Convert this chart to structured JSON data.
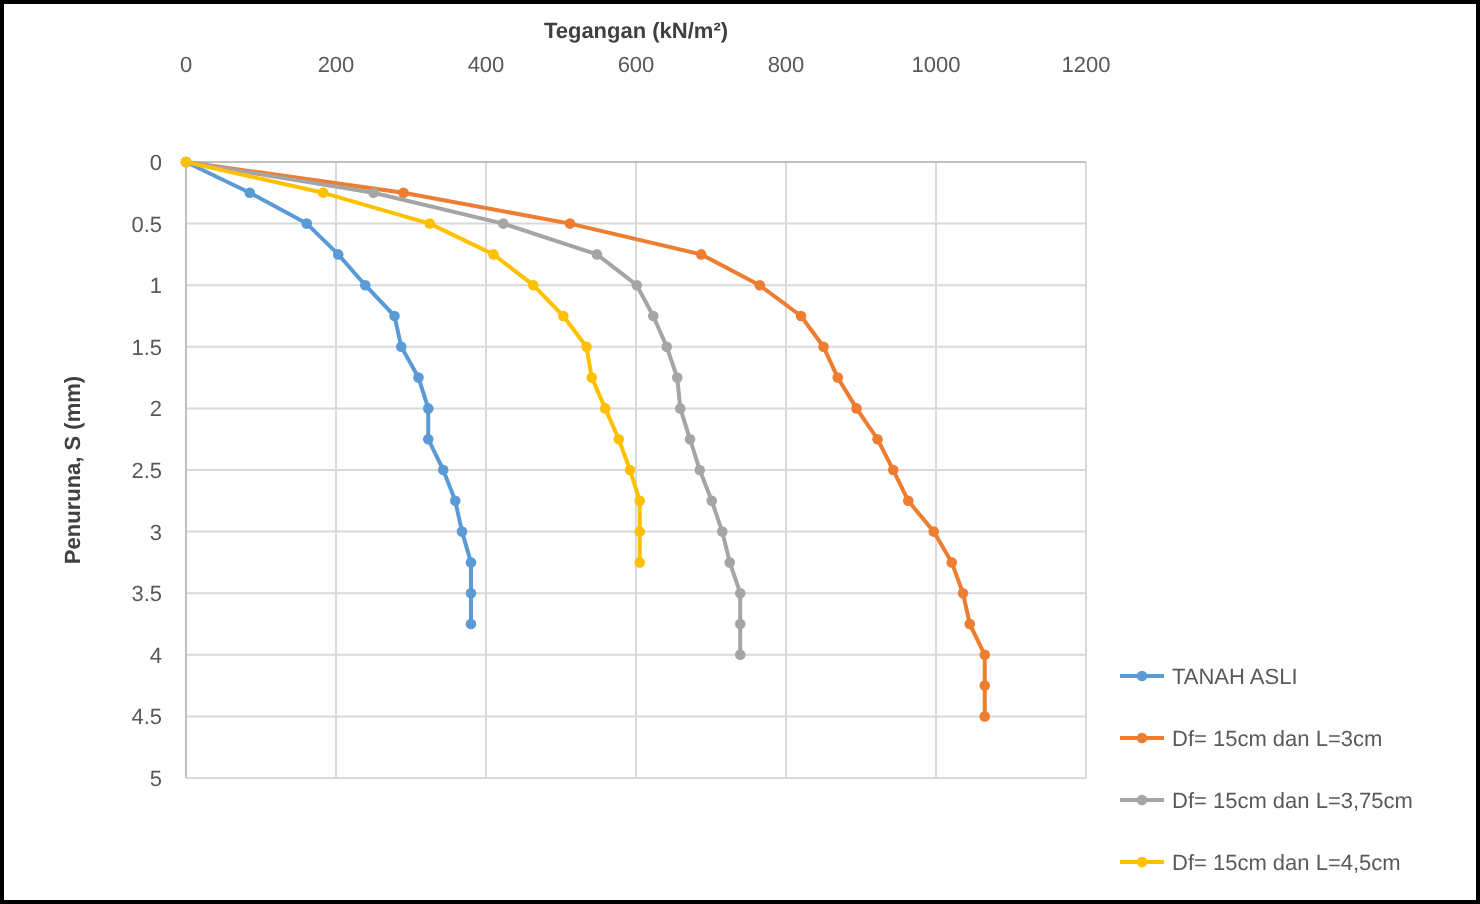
{
  "chart_data": {
    "type": "line",
    "xlabel": "Tegangan (kN/m²)",
    "ylabel": "Penuruna, S (mm)",
    "xlim": [
      0,
      1200
    ],
    "xticks": [
      0,
      200,
      400,
      600,
      800,
      1000,
      1200
    ],
    "ylim": [
      5,
      0
    ],
    "yticks": [
      0,
      0.5,
      1,
      1.5,
      2,
      2.5,
      3,
      3.5,
      4,
      4.5,
      5
    ],
    "grid": true,
    "legend": "bottom right",
    "marker": "circle",
    "line_style": "solid",
    "series": [
      {
        "name": "TANAH ASLI",
        "color": "#5b9bd5",
        "x": [
          0,
          85,
          161,
          203,
          239,
          278,
          287,
          310,
          323,
          323,
          343,
          359,
          368,
          380,
          380,
          380
        ],
        "values": [
          0,
          0.25,
          0.5,
          0.75,
          1,
          1.25,
          1.5,
          1.75,
          2,
          2.25,
          2.5,
          2.75,
          3,
          3.25,
          3.5,
          3.75
        ]
      },
      {
        "name": "Df= 15cm dan L=3cm",
        "color": "#ed7d31",
        "x": [
          0,
          290,
          512,
          687,
          765,
          820,
          850,
          869,
          894,
          922,
          943,
          963,
          997,
          1021,
          1036,
          1045,
          1065,
          1065,
          1065
        ],
        "values": [
          0,
          0.25,
          0.5,
          0.75,
          1,
          1.25,
          1.5,
          1.75,
          2,
          2.25,
          2.5,
          2.75,
          3,
          3.25,
          3.5,
          3.75,
          4,
          4.25,
          4.5
        ]
      },
      {
        "name": "Df= 15cm dan L=3,75cm",
        "color": "#a5a5a5",
        "x": [
          0,
          250,
          423,
          548,
          601,
          623,
          641,
          655,
          659,
          672,
          685,
          701,
          715,
          725,
          739,
          739,
          739
        ],
        "values": [
          0,
          0.25,
          0.5,
          0.75,
          1,
          1.25,
          1.5,
          1.75,
          2,
          2.25,
          2.5,
          2.75,
          3,
          3.25,
          3.5,
          3.75,
          4
        ]
      },
      {
        "name": "Df= 15cm dan L=4,5cm",
        "color": "#ffc000",
        "x": [
          0,
          183,
          325,
          410,
          463,
          503,
          534,
          541,
          559,
          577,
          592,
          605,
          605,
          605
        ],
        "values": [
          0,
          0.25,
          0.5,
          0.75,
          1,
          1.25,
          1.5,
          1.75,
          2,
          2.25,
          2.5,
          2.75,
          3,
          3.25
        ]
      }
    ]
  }
}
